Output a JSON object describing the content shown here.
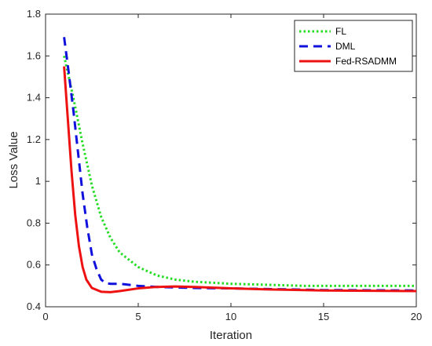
{
  "chart_data": {
    "type": "line",
    "title": "",
    "xlabel": "Iteration",
    "ylabel": "Loss Value",
    "xlim": [
      0,
      20
    ],
    "ylim": [
      0.4,
      1.8
    ],
    "xticks": [
      0,
      5,
      10,
      15,
      20
    ],
    "yticks": [
      0.4,
      0.6,
      0.8,
      1.0,
      1.2,
      1.4,
      1.6,
      1.8
    ],
    "xtick_labels": [
      "0",
      "5",
      "10",
      "15",
      "20"
    ],
    "ytick_labels": [
      "0.4",
      "0.6",
      "0.8",
      "1",
      "1.2",
      "1.4",
      "1.6",
      "1.8"
    ],
    "grid": false,
    "legend_position": "top-right",
    "series": [
      {
        "name": "FL",
        "color": "#22dd22",
        "style": "dotted",
        "x": [
          1,
          1.5,
          2,
          2.5,
          3,
          3.5,
          4,
          5,
          6,
          7,
          8,
          10,
          12,
          14,
          16,
          18,
          20
        ],
        "y": [
          1.6,
          1.4,
          1.18,
          0.98,
          0.83,
          0.73,
          0.66,
          0.59,
          0.55,
          0.53,
          0.52,
          0.51,
          0.505,
          0.5,
          0.5,
          0.5,
          0.5
        ]
      },
      {
        "name": "DML",
        "color": "#1010dd",
        "style": "dashed",
        "x": [
          1,
          1.25,
          1.5,
          1.75,
          2,
          2.25,
          2.5,
          2.75,
          3,
          3.25,
          3.5,
          4,
          5,
          6,
          8,
          10,
          12,
          15,
          20
        ],
        "y": [
          1.69,
          1.52,
          1.34,
          1.14,
          0.94,
          0.78,
          0.65,
          0.58,
          0.53,
          0.512,
          0.51,
          0.51,
          0.5,
          0.495,
          0.49,
          0.488,
          0.485,
          0.48,
          0.478
        ]
      },
      {
        "name": "Fed-RSADMM",
        "color": "#ee1111",
        "style": "solid",
        "x": [
          1,
          1.2,
          1.4,
          1.6,
          1.8,
          2,
          2.2,
          2.5,
          3,
          3.5,
          4,
          5,
          6,
          7,
          8,
          10,
          12,
          15,
          20
        ],
        "y": [
          1.55,
          1.3,
          1.05,
          0.84,
          0.69,
          0.59,
          0.53,
          0.49,
          0.472,
          0.47,
          0.475,
          0.488,
          0.495,
          0.497,
          0.495,
          0.488,
          0.483,
          0.478,
          0.475
        ]
      }
    ]
  }
}
